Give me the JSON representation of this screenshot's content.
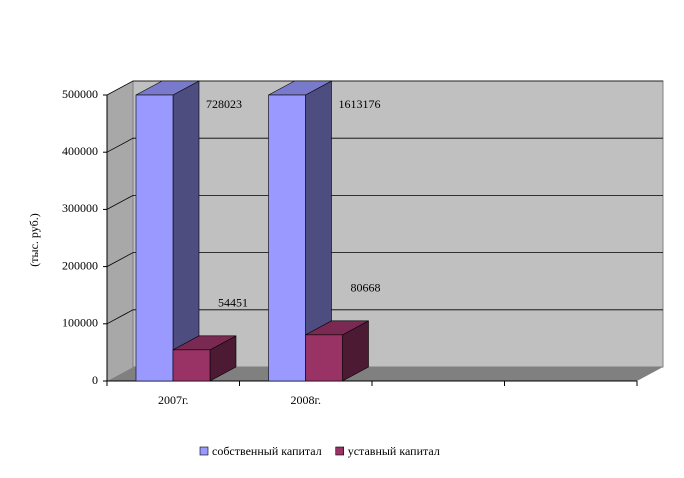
{
  "chart_data": {
    "type": "bar3d",
    "y_label": "(тыс. руб.)",
    "categories": [
      "2007г.",
      "2008г.",
      null,
      null
    ],
    "series": [
      {
        "name": "собственный капитал",
        "color": "#9999ff",
        "values": [
          728023,
          1613176,
          null,
          null
        ]
      },
      {
        "name": "уставный капитал",
        "color": "#993366",
        "values": [
          54451,
          80668,
          null,
          null
        ]
      }
    ],
    "ylim": [
      0,
      500000
    ],
    "yticks": [
      0,
      100000,
      200000,
      300000,
      400000,
      500000
    ],
    "grid": true,
    "legend": "bottom"
  }
}
